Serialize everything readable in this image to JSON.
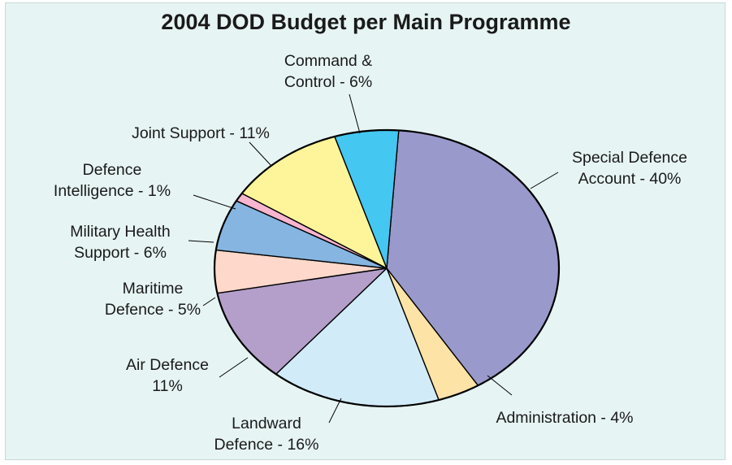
{
  "chart_data": {
    "type": "pie",
    "title": "2004 DOD Budget per Main Programme",
    "slices": [
      {
        "label_lines": [
          "Special Defence",
          "Account - 40%"
        ],
        "value": 40,
        "color": "#9a99cb"
      },
      {
        "label_lines": [
          "Administration - 4%"
        ],
        "value": 4,
        "color": "#fde3a5"
      },
      {
        "label_lines": [
          "Landward",
          "Defence - 16%"
        ],
        "value": 16,
        "color": "#d2ebf8"
      },
      {
        "label_lines": [
          "Air Defence",
          "11%"
        ],
        "value": 11,
        "color": "#b39fca"
      },
      {
        "label_lines": [
          "Maritime",
          "Defence - 5%"
        ],
        "value": 5,
        "color": "#fdd8cb"
      },
      {
        "label_lines": [
          "Military Health",
          "Support - 6%"
        ],
        "value": 6,
        "color": "#86b5e1"
      },
      {
        "label_lines": [
          "Defence",
          "Intelligence - 1%"
        ],
        "value": 1,
        "color": "#f7b5cf"
      },
      {
        "label_lines": [
          "Joint Support - 11%"
        ],
        "value": 11,
        "color": "#fef59a"
      },
      {
        "label_lines": [
          "Command &",
          "Control - 6%"
        ],
        "value": 6,
        "color": "#44c7f1"
      }
    ]
  }
}
